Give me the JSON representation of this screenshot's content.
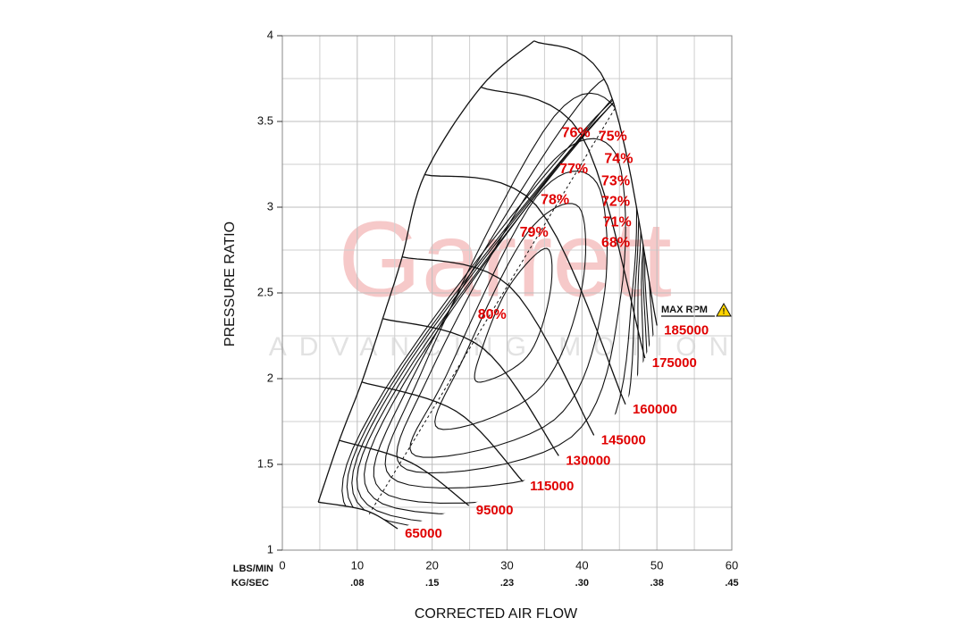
{
  "chart_data": {
    "type": "compressor_map",
    "x_label": "CORRECTED AIR FLOW",
    "y_label": "PRESSURE RATIO",
    "x_unit_label": "LBS/MIN",
    "x2_unit_label": "KG/SEC",
    "xlim": [
      0,
      60
    ],
    "ylim": [
      1,
      4
    ],
    "xticks": [
      0,
      10,
      20,
      30,
      40,
      50,
      60
    ],
    "x2ticks": [
      {
        "value": 10,
        "label": ".08"
      },
      {
        "value": 20,
        "label": ".15"
      },
      {
        "value": 30,
        "label": ".23"
      },
      {
        "value": 40,
        "label": ".30"
      },
      {
        "value": 50,
        "label": ".38"
      },
      {
        "value": 60,
        "label": ".45"
      }
    ],
    "yticks": [
      1,
      1.5,
      2,
      2.5,
      3,
      3.5,
      4
    ],
    "x_grid": [
      5,
      15,
      25,
      35,
      45,
      55
    ],
    "y_grid": [
      1.25,
      1.75,
      2.25,
      2.75,
      3.25,
      3.75
    ],
    "grid": true,
    "watermark": {
      "brand": "Garrett",
      "tagline": "ADVANCING MOTION"
    },
    "max_rpm_label": "MAX RPM",
    "speed_lines": [
      {
        "name": "65000",
        "x": [
          4.8,
          11.2,
          15.4
        ],
        "y": [
          1.28,
          1.23,
          1.125
        ]
      },
      {
        "name": "95000",
        "x": [
          7.6,
          17.2,
          24.9
        ],
        "y": [
          1.64,
          1.51,
          1.26
        ]
      },
      {
        "name": "115000",
        "x": [
          10.6,
          23.2,
          32.1
        ],
        "y": [
          1.98,
          1.81,
          1.4
        ]
      },
      {
        "name": "130000",
        "x": [
          13.4,
          26.7,
          36.9
        ],
        "y": [
          2.35,
          2.18,
          1.55
        ]
      },
      {
        "name": "145000",
        "x": [
          16.0,
          30.3,
          41.6
        ],
        "y": [
          2.71,
          2.54,
          1.67
        ]
      },
      {
        "name": "160000",
        "x": [
          19.0,
          33.9,
          45.8
        ],
        "y": [
          3.19,
          3.01,
          1.85
        ]
      },
      {
        "name": "175000",
        "x": [
          26.5,
          39.8,
          48.4
        ],
        "y": [
          3.7,
          3.43,
          2.12
        ]
      },
      {
        "name": "185000",
        "x": [
          33.6,
          43.4,
          50.0
        ],
        "y": [
          3.97,
          3.71,
          2.31
        ]
      }
    ],
    "efficiency_islands": [
      {
        "name": "80%",
        "label_x": 28.0,
        "label_y": 2.37,
        "x": [
          26.1,
          32.7,
          35.7,
          35.3,
          30.3,
          26.7
        ],
        "y": [
          1.98,
          2.13,
          2.49,
          2.76,
          2.54,
          2.18
        ]
      },
      {
        "name": "79%",
        "label_x": 33.6,
        "label_y": 2.85,
        "x": [
          20.8,
          33.9,
          39.8,
          39.6,
          32.7,
          24.3
        ],
        "y": [
          1.71,
          1.92,
          2.49,
          3.0,
          2.85,
          2.13
        ]
      },
      {
        "name": "78%",
        "label_x": 36.4,
        "label_y": 3.04,
        "x": [
          17.8,
          36.3,
          42.8,
          42.0,
          33.9,
          21.9
        ],
        "y": [
          1.55,
          1.76,
          2.44,
          3.14,
          3.06,
          2.02
        ]
      },
      {
        "name": "77%",
        "label_x": 38.9,
        "label_y": 3.22,
        "x": [
          16.6,
          38.6,
          45.2,
          44.4,
          35.1,
          19.6
        ],
        "y": [
          1.47,
          1.66,
          2.49,
          3.32,
          3.22,
          2.02
        ]
      },
      {
        "name": "76%",
        "label_x": 39.2,
        "label_y": 3.43,
        "x": [
          15.4,
          41.0,
          46.8,
          45.8,
          36.3,
          18.4
        ],
        "y": [
          1.4,
          1.55,
          2.54,
          3.48,
          3.53,
          2.02
        ]
      },
      {
        "name": "75%",
        "label_x": 44.1,
        "label_y": 3.41,
        "x": [
          14.2,
          42.2,
          47.2,
          46.4,
          39.8,
          17.2
        ],
        "y": [
          1.32,
          1.47,
          2.59,
          3.58,
          3.61,
          1.99
        ]
      },
      {
        "name": "74%",
        "label_x": 44.9,
        "label_y": 3.28,
        "x": [
          13.4,
          43.4,
          47.6,
          47.2,
          44.6,
          16.2
        ],
        "y": [
          1.27,
          1.4,
          2.65,
          3.43,
          3.66,
          1.97
        ]
      },
      {
        "name": "73%",
        "label_x": 44.5,
        "label_y": 3.15,
        "x": [
          12.6,
          44.4,
          48.0,
          47.7,
          45.8,
          15.5
        ],
        "y": [
          1.23,
          1.33,
          2.67,
          3.22,
          3.68,
          1.96
        ]
      },
      {
        "name": "72%",
        "label_x": 44.5,
        "label_y": 3.03,
        "x": [
          12.2,
          45.2,
          48.2,
          48.0,
          46.4,
          14.8
        ],
        "y": [
          1.2,
          1.29,
          2.69,
          3.09,
          3.7,
          1.95
        ]
      },
      {
        "name": "71%",
        "label_x": 44.7,
        "label_y": 2.91,
        "x": [
          11.7,
          45.8,
          48.4,
          48.2,
          46.8,
          14.2
        ],
        "y": [
          1.17,
          1.25,
          2.7,
          2.98,
          3.71,
          1.94
        ]
      },
      {
        "name": "68%",
        "label_x": 44.5,
        "label_y": 2.79,
        "x": [
          11.2,
          46.4,
          48.9,
          48.7,
          47.0,
          13.6
        ],
        "y": [
          1.14,
          1.21,
          2.72,
          2.83,
          3.73,
          1.93
        ]
      }
    ],
    "dashed_line": {
      "x": [
        11.6,
        44.6
      ],
      "y": [
        1.21,
        3.59
      ]
    }
  }
}
